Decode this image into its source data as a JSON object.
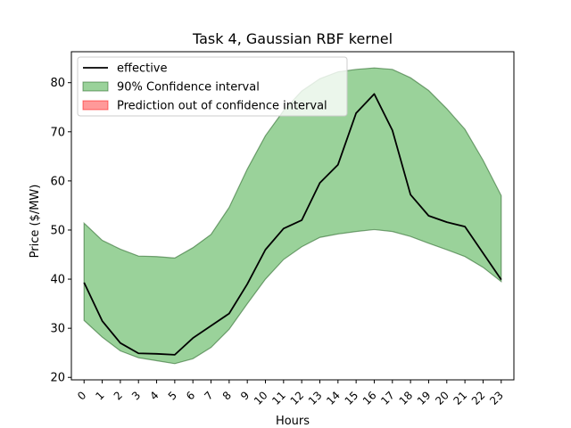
{
  "chart_data": {
    "type": "line",
    "title": "Task 4, Gaussian RBF kernel",
    "xlabel": "Hours",
    "ylabel": "Price ($/MW)",
    "x": [
      0,
      1,
      2,
      3,
      4,
      5,
      6,
      7,
      8,
      9,
      10,
      11,
      12,
      13,
      14,
      15,
      16,
      17,
      18,
      19,
      20,
      21,
      22,
      23
    ],
    "xticks": [
      "0",
      "1",
      "2",
      "3",
      "4",
      "5",
      "6",
      "7",
      "8",
      "9",
      "10",
      "11",
      "12",
      "13",
      "14",
      "15",
      "16",
      "17",
      "18",
      "19",
      "20",
      "21",
      "22",
      "23"
    ],
    "yticks": [
      "20",
      "30",
      "40",
      "50",
      "60",
      "70",
      "80"
    ],
    "ylim": [
      19.5,
      86.3
    ],
    "series": [
      {
        "name": "effective",
        "kind": "line",
        "color": "#000000",
        "values": [
          39.3,
          31.5,
          27.0,
          24.9,
          24.8,
          24.6,
          28.0,
          30.5,
          33.0,
          39.0,
          46.0,
          50.3,
          52.0,
          59.6,
          63.3,
          73.8,
          77.7,
          70.3,
          57.2,
          52.9,
          51.6,
          50.7,
          45.3,
          39.9
        ]
      },
      {
        "name": "90% Confidence interval",
        "kind": "band",
        "color": "#2ca02c",
        "lower": [
          31.6,
          28.2,
          25.4,
          24.0,
          23.4,
          22.8,
          23.8,
          26.1,
          29.8,
          35.0,
          40.0,
          44.0,
          46.6,
          48.5,
          49.2,
          49.7,
          50.1,
          49.7,
          48.7,
          47.3,
          46.0,
          44.6,
          42.4,
          39.5
        ],
        "upper": [
          51.4,
          47.9,
          46.1,
          44.7,
          44.6,
          44.3,
          46.4,
          49.1,
          54.6,
          62.4,
          69.2,
          74.3,
          78.3,
          80.8,
          82.2,
          82.7,
          83.0,
          82.7,
          81.0,
          78.4,
          74.7,
          70.5,
          64.2,
          57.0
        ]
      },
      {
        "name": "Prediction out of confidence interval",
        "kind": "band",
        "color": "#ff0000",
        "lower": [],
        "upper": []
      }
    ],
    "legend": "top-left",
    "grid": false
  }
}
